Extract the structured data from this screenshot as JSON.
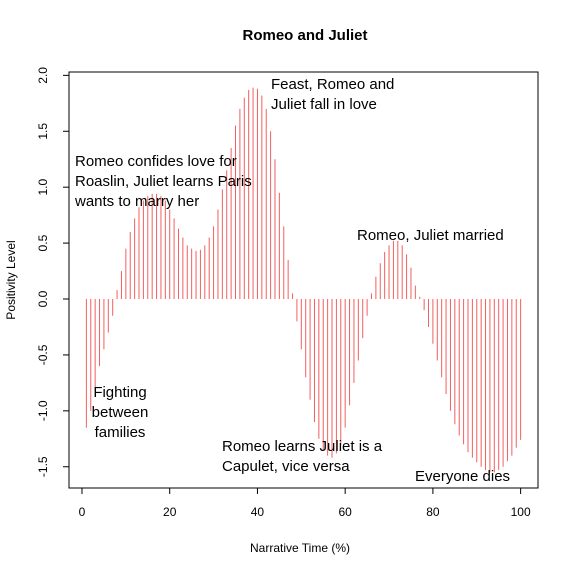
{
  "chart_data": {
    "type": "bar_h",
    "title": "Romeo and Juliet",
    "xlabel": "Narrative Time (%)",
    "ylabel": "Positivity Level",
    "color": "#f25f5f",
    "x": [
      1,
      2,
      3,
      4,
      5,
      6,
      7,
      8,
      9,
      10,
      11,
      12,
      13,
      14,
      15,
      16,
      17,
      18,
      19,
      20,
      21,
      22,
      23,
      24,
      25,
      26,
      27,
      28,
      29,
      30,
      31,
      32,
      33,
      34,
      35,
      36,
      37,
      38,
      39,
      40,
      41,
      42,
      43,
      44,
      45,
      46,
      47,
      48,
      49,
      50,
      51,
      52,
      53,
      54,
      55,
      56,
      57,
      58,
      59,
      60,
      61,
      62,
      63,
      64,
      65,
      66,
      67,
      68,
      69,
      70,
      71,
      72,
      73,
      74,
      75,
      76,
      77,
      78,
      79,
      80,
      81,
      82,
      83,
      84,
      85,
      86,
      87,
      88,
      89,
      90,
      91,
      92,
      93,
      94,
      95,
      96,
      97,
      98,
      99,
      100
    ],
    "values": [
      -1.15,
      -1.0,
      -0.8,
      -0.6,
      -0.45,
      -0.3,
      -0.15,
      0.08,
      0.25,
      0.45,
      0.6,
      0.72,
      0.82,
      0.88,
      0.92,
      0.94,
      0.94,
      0.92,
      0.88,
      0.8,
      0.72,
      0.63,
      0.55,
      0.48,
      0.45,
      0.43,
      0.44,
      0.48,
      0.55,
      0.65,
      0.8,
      0.98,
      1.15,
      1.35,
      1.55,
      1.7,
      1.8,
      1.87,
      1.89,
      1.88,
      1.82,
      1.7,
      1.5,
      1.25,
      0.95,
      0.65,
      0.35,
      0.05,
      -0.2,
      -0.45,
      -0.7,
      -0.9,
      -1.1,
      -1.25,
      -1.35,
      -1.4,
      -1.42,
      -1.38,
      -1.3,
      -1.15,
      -0.95,
      -0.75,
      -0.55,
      -0.35,
      -0.15,
      0.05,
      0.2,
      0.32,
      0.42,
      0.48,
      0.52,
      0.52,
      0.48,
      0.4,
      0.28,
      0.12,
      0.02,
      -0.1,
      -0.25,
      -0.4,
      -0.55,
      -0.7,
      -0.85,
      -1.0,
      -1.12,
      -1.22,
      -1.3,
      -1.37,
      -1.42,
      -1.46,
      -1.5,
      -1.53,
      -1.55,
      -1.55,
      -1.53,
      -1.5,
      -1.45,
      -1.4,
      -1.33,
      -1.26
    ],
    "xlim": [
      -2.96,
      103.96
    ],
    "xticks": [
      0,
      20,
      40,
      60,
      80,
      100
    ],
    "ylim": [
      -1.69,
      2.03
    ],
    "yticks": [
      -1.5,
      -1.0,
      -0.5,
      0.0,
      0.5,
      1.0,
      1.5,
      2.0
    ],
    "ytick_labels": [
      "-1.5",
      "-1.0",
      "-0.5",
      "0.0",
      "0.5",
      "1.0",
      "1.5",
      "2.0"
    ],
    "annotations": [
      [
        "Fighting",
        "between",
        "families"
      ],
      [
        "Romeo confides love for",
        "Roaslin, Juliet learns Paris",
        "wants to marry her"
      ],
      [
        "Feast, Romeo and",
        "Juliet fall in love"
      ],
      [
        "Romeo, Juliet married"
      ],
      [
        "Romeo learns Juliet is a",
        "Capulet, vice versa"
      ],
      [
        "Everyone dies"
      ]
    ]
  }
}
